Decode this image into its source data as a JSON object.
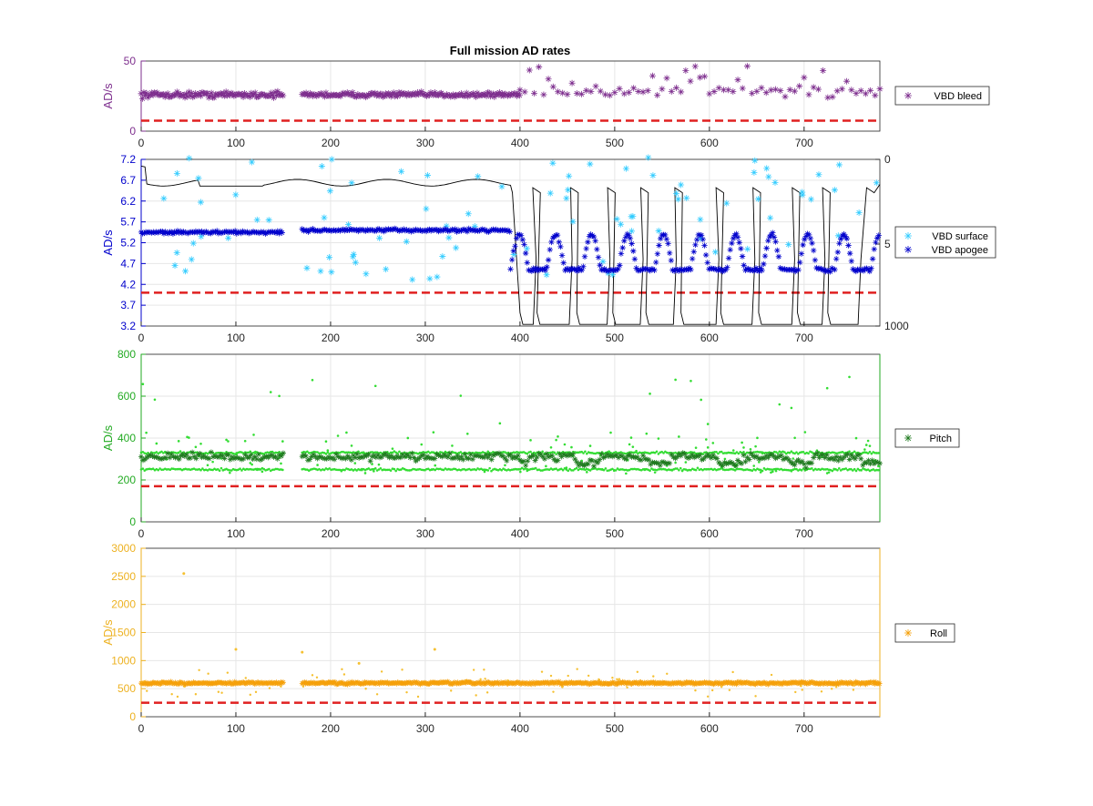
{
  "chart_data": [
    {
      "type": "scatter",
      "title": "Full mission AD rates",
      "ylabel": "AD/s",
      "color": "#7E2F8E",
      "xlim": [
        0,
        780
      ],
      "ylim": [
        0,
        50
      ],
      "xticks": [
        0,
        100,
        200,
        300,
        400,
        500,
        600,
        700
      ],
      "yticks": [
        0,
        50
      ],
      "legend": "right",
      "threshold": 7.5,
      "gap": [
        150,
        170
      ],
      "series": [
        {
          "name": "VBD bleed",
          "marker": "*",
          "segments": [
            {
              "x0": 0,
              "x1": 150,
              "base": 26,
              "spread": 3,
              "step": 1.4
            },
            {
              "x0": 170,
              "x1": 400,
              "base": 26,
              "spread": 2.5,
              "step": 1.4
            },
            {
              "x0": 400,
              "x1": 780,
              "base": 28,
              "spread": 5,
              "step": 5
            }
          ]
        }
      ]
    },
    {
      "type": "scatter",
      "ylabel": "AD/s",
      "color": "#0000CC",
      "xlim": [
        0,
        780
      ],
      "ylim": [
        3.2,
        7.2
      ],
      "xticks": [
        0,
        100,
        200,
        300,
        400,
        500,
        600,
        700
      ],
      "yticks": [
        3.2,
        3.7,
        4.2,
        4.7,
        5.2,
        5.7,
        6.2,
        6.7,
        7.2
      ],
      "y2ticks": [
        0,
        5,
        1000
      ],
      "legend": "right",
      "threshold": 4.0,
      "series": [
        {
          "name": "VBD surface",
          "marker": "*",
          "color": "#33CCFF",
          "approx_range": [
            4.1,
            7.3
          ]
        },
        {
          "name": "VBD apogee",
          "marker": "*",
          "color": "#0000CC",
          "levels": [
            {
              "x0": 0,
              "x1": 150,
              "y": 5.45
            },
            {
              "x0": 170,
              "x1": 390,
              "y": 5.5
            },
            {
              "x0": 390,
              "x1": 780,
              "y": 4.5,
              "osc_high": 5.3
            }
          ]
        },
        {
          "name": "depth",
          "color": "#000000",
          "axis": "right",
          "dives": [
            {
              "x0": 400,
              "x1": 417
            },
            {
              "x0": 418,
              "x1": 455
            },
            {
              "x0": 460,
              "x1": 495
            },
            {
              "x0": 498,
              "x1": 530
            },
            {
              "x0": 533,
              "x1": 565
            },
            {
              "x0": 570,
              "x1": 610
            },
            {
              "x0": 612,
              "x1": 648
            },
            {
              "x0": 652,
              "x1": 690
            },
            {
              "x0": 693,
              "x1": 722
            },
            {
              "x0": 725,
              "x1": 760
            }
          ]
        }
      ]
    },
    {
      "type": "scatter",
      "ylabel": "AD/s",
      "color": "#22AA22",
      "xlim": [
        0,
        780
      ],
      "ylim": [
        0,
        800
      ],
      "xticks": [
        0,
        100,
        200,
        300,
        400,
        500,
        600,
        700
      ],
      "yticks": [
        0,
        200,
        400,
        600,
        800
      ],
      "legend": "right",
      "threshold": 170,
      "gap": [
        150,
        170
      ],
      "series": [
        {
          "name": "Pitch",
          "marker": "*",
          "color": "#1F7A1F",
          "base": 310,
          "bands": [
            250,
            330
          ]
        }
      ]
    },
    {
      "type": "scatter",
      "ylabel": "AD/s",
      "color": "#EDB120",
      "xlim": [
        0,
        780
      ],
      "ylim": [
        0,
        3000
      ],
      "xticks": [
        0,
        100,
        200,
        300,
        400,
        500,
        600,
        700
      ],
      "yticks": [
        0,
        500,
        1000,
        1500,
        2000,
        2500,
        3000
      ],
      "legend": "right",
      "threshold": 250,
      "gap": [
        150,
        170
      ],
      "series": [
        {
          "name": "Roll",
          "marker": "*",
          "color": "#F5A00A",
          "base": 600,
          "outliers": [
            [
              45,
              2550
            ],
            [
              100,
              1200
            ],
            [
              310,
              1200
            ],
            [
              170,
              1150
            ],
            [
              230,
              950
            ]
          ]
        }
      ]
    }
  ]
}
